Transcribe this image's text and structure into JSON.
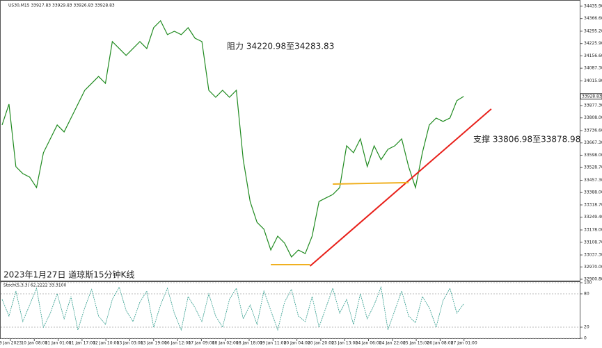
{
  "chart_data": [
    {
      "type": "line",
      "header": "US30,M15 33927.83 33929.83 33926.83 33928.83",
      "annotations": [
        "阻力 34220.98至34283.83",
        "支撑 33806.98至33878.98",
        "2023年1月27日 道琼斯15分钟K线"
      ],
      "price_tag": {
        "value": 33928.83,
        "label": "33928.83"
      },
      "x_labels": [
        "9 Jan 2023",
        "10 Jan 08:00",
        "11 Jan 01:00",
        "11 Jan 17:00",
        "12 Jan 10:00",
        "13 Jan 03:00",
        "13 Jan 19:00",
        "16 Jan 12:00",
        "17 Jan 09:00",
        "18 Jan 02:00",
        "18 Jan 18:00",
        "19 Jan 11:00",
        "20 Jan 04:00",
        "20 Jan 20:00",
        "23 Jan 13:00",
        "24 Jan 06:00",
        "24 Jan 22:00",
        "25 Jan 15:00",
        "26 Jan 08:00",
        "27 Jan 01:00"
      ],
      "series": [
        {
          "color": "#1f8a1f",
          "values": [
            33768,
            33885,
            33534,
            33495,
            33475,
            33416,
            33612,
            33690,
            33768,
            33729,
            33807,
            33885,
            33963,
            34002,
            34041,
            34002,
            34237,
            34198,
            34159,
            34198,
            34237,
            34198,
            34315,
            34354,
            34276,
            34295,
            34276,
            34315,
            34256,
            34237,
            33963,
            33924,
            33963,
            33924,
            33963,
            33573,
            33338,
            33221,
            33182,
            33065,
            33143,
            33104,
            33026,
            33065,
            33045,
            33143,
            33338,
            33358,
            33377,
            33416,
            33651,
            33612,
            33690,
            33534,
            33651,
            33573,
            33631,
            33651,
            33690,
            33534,
            33416,
            33612,
            33768,
            33807,
            33788,
            33807,
            33905,
            33929
          ]
        }
      ],
      "trendlines": [
        {
          "color": "#e8201a",
          "x": [
            44.7,
            71
          ],
          "y": [
            32975,
            33858
          ]
        },
        {
          "color": "#f0b020",
          "x": [
            39,
            44.7
          ],
          "y": [
            32983,
            32983
          ]
        },
        {
          "color": "#f0b020",
          "x": [
            48,
            59
          ],
          "y": [
            33436,
            33444
          ]
        }
      ],
      "ylim": [
        32893,
        34459
      ],
      "yticks": [
        {
          "value": 34435.9,
          "label": "34435.90"
        },
        {
          "value": 34366.6,
          "label": "34366.60"
        },
        {
          "value": 34295.2,
          "label": "34295.20"
        },
        {
          "value": 34225.9,
          "label": "34225.90"
        },
        {
          "value": 34156.6,
          "label": "34156.60"
        },
        {
          "value": 34087.3,
          "label": "34087.30"
        },
        {
          "value": 34015.9,
          "label": "34015.90"
        },
        {
          "value": 33877.3,
          "label": "33877.30"
        },
        {
          "value": 33808,
          "label": "33808.00"
        },
        {
          "value": 33736.6,
          "label": "33736.60"
        },
        {
          "value": 33667.3,
          "label": "33667.30"
        },
        {
          "value": 33598,
          "label": "33598.00"
        },
        {
          "value": 33528.7,
          "label": "33528.70"
        },
        {
          "value": 33457.3,
          "label": "33457.30"
        },
        {
          "value": 33388,
          "label": "33388.00"
        },
        {
          "value": 33318.7,
          "label": "33318.70"
        },
        {
          "value": 33249.4,
          "label": "33249.40"
        },
        {
          "value": 33178,
          "label": "33178.00"
        },
        {
          "value": 33108.7,
          "label": "33108.70"
        },
        {
          "value": 33037.3,
          "label": "33037.30"
        },
        {
          "value": 32970,
          "label": "32970.00"
        },
        {
          "value": 32900.8,
          "label": "32900.80"
        }
      ]
    },
    {
      "type": "line",
      "title": "Stoch(5,3,3) 62.2222 33.3100",
      "series": [
        {
          "color": "#2b9a8a",
          "values": [
            70,
            40,
            85,
            30,
            60,
            90,
            20,
            45,
            80,
            35,
            75,
            15,
            55,
            88,
            40,
            25,
            70,
            92,
            50,
            30,
            65,
            85,
            20,
            60,
            90,
            45,
            15,
            75,
            55,
            30,
            80,
            40,
            20,
            70,
            90,
            35,
            60,
            25,
            85,
            50,
            15,
            65,
            88,
            40,
            30,
            75,
            20,
            55,
            90,
            45,
            70,
            25,
            80,
            35,
            60,
            92,
            15,
            50,
            85,
            40,
            28,
            75,
            55,
            20,
            68,
            90,
            45,
            62
          ]
        }
      ],
      "ylim": [
        0,
        100
      ],
      "yticks": [
        100,
        80,
        20,
        0
      ]
    }
  ]
}
